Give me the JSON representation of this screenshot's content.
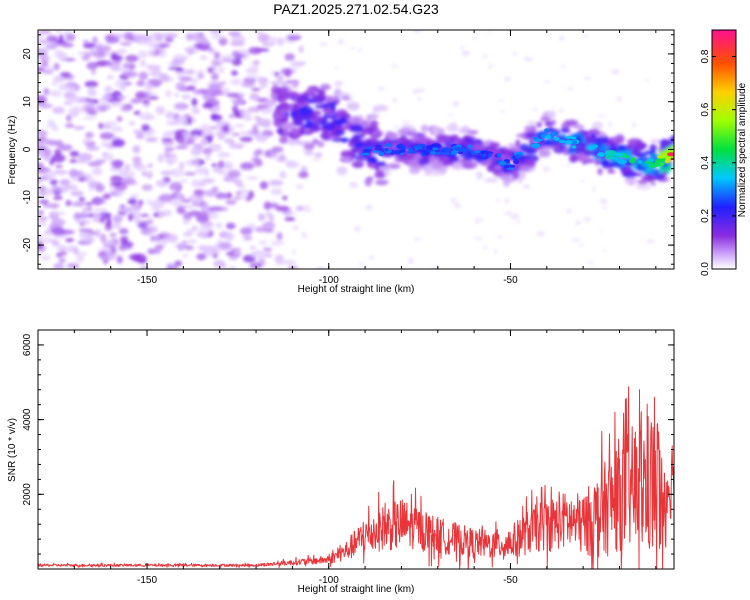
{
  "title": "PAZ1.2025.271.02.54.G23",
  "chart_data": [
    {
      "type": "heatmap",
      "xlabel": "Height of straight line (km)",
      "ylabel": "Frequency (Hz)",
      "xlim": [
        -180,
        -5
      ],
      "ylim": [
        -25,
        25
      ],
      "xticks": [
        -150,
        -100,
        -50
      ],
      "xtick_labels": [
        "-150",
        "-100",
        "-50"
      ],
      "yticks": [
        -20,
        -10,
        0,
        10,
        20
      ],
      "ytick_labels": [
        "-20",
        "-10",
        "0",
        "10",
        "20"
      ],
      "colorbar": {
        "label": "Normalized spectral amplitude",
        "range": [
          0,
          0.9
        ],
        "ticks": [
          0.0,
          0.2,
          0.4,
          0.6,
          0.8
        ],
        "tick_labels": [
          "0.0",
          "0.2",
          "0.4",
          "0.6",
          "0.8"
        ],
        "colormap": "rainbow"
      },
      "ridge": {
        "description_points_x": [
          -115,
          -100,
          -90,
          -75,
          -60,
          -50,
          -40,
          -30,
          -20,
          -10,
          -5
        ],
        "description_points_y": [
          8,
          7,
          0,
          0,
          0,
          -3,
          3,
          1,
          -2,
          -3,
          -1
        ],
        "peak_amplitude": [
          0.25,
          0.3,
          0.3,
          0.3,
          0.3,
          0.3,
          0.35,
          0.4,
          0.45,
          0.5,
          0.9
        ]
      }
    },
    {
      "type": "line",
      "xlabel": "Height of straight line (km)",
      "ylabel": "SNR (10 * v/v)",
      "xlim": [
        -180,
        -5
      ],
      "ylim": [
        0,
        6400
      ],
      "xticks": [
        -150,
        -100,
        -50
      ],
      "xtick_labels": [
        "-150",
        "-100",
        "-50"
      ],
      "yticks": [
        2000,
        4000,
        6000
      ],
      "ytick_labels": [
        "2000",
        "4000",
        "6000"
      ],
      "series": [
        {
          "name": "SNR",
          "color": "#e8353a",
          "x": [
            -180,
            -160,
            -140,
            -120,
            -100,
            -95,
            -90,
            -85,
            -80,
            -75,
            -70,
            -65,
            -60,
            -55,
            -50,
            -45,
            -40,
            -35,
            -30,
            -25,
            -20,
            -15,
            -10,
            -8,
            -5
          ],
          "y_mean": [
            100,
            100,
            100,
            100,
            250,
            500,
            900,
            1100,
            1200,
            1100,
            900,
            800,
            700,
            650,
            700,
            1000,
            1200,
            1300,
            1200,
            1500,
            2000,
            2200,
            2300,
            1800,
            2700
          ],
          "y_spread": [
            60,
            60,
            60,
            60,
            200,
            500,
            900,
            1100,
            1300,
            1000,
            900,
            800,
            700,
            700,
            800,
            1100,
            1300,
            1400,
            1500,
            2200,
            2800,
            3200,
            3800,
            2600,
            1800
          ]
        }
      ]
    }
  ]
}
